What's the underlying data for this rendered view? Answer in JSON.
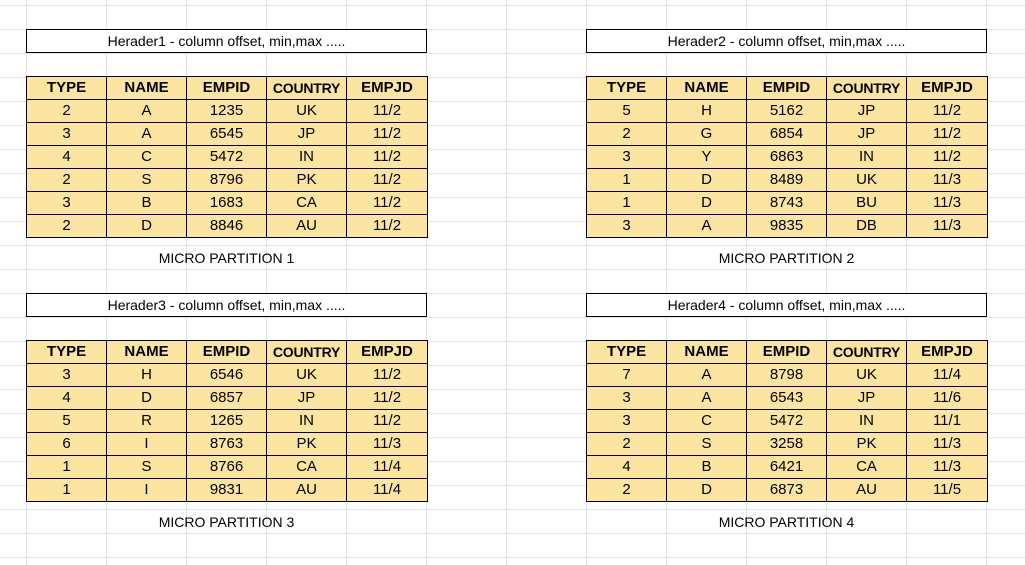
{
  "columns": [
    "TYPE",
    "NAME",
    "EMPID",
    "COUNTRY",
    "EMPJD"
  ],
  "partitions": [
    {
      "header": "Herader1 - column offset, min,max .....",
      "caption": "MICRO PARTITION 1",
      "rows": [
        [
          "2",
          "A",
          "1235",
          "UK",
          "11/2"
        ],
        [
          "3",
          "A",
          "6545",
          "JP",
          "11/2"
        ],
        [
          "4",
          "C",
          "5472",
          "IN",
          "11/2"
        ],
        [
          "2",
          "S",
          "8796",
          "PK",
          "11/2"
        ],
        [
          "3",
          "B",
          "1683",
          "CA",
          "11/2"
        ],
        [
          "2",
          "D",
          "8846",
          "AU",
          "11/2"
        ]
      ]
    },
    {
      "header": "Herader2 - column offset, min,max .....",
      "caption": "MICRO PARTITION 2",
      "rows": [
        [
          "5",
          "H",
          "5162",
          "JP",
          "11/2"
        ],
        [
          "2",
          "G",
          "6854",
          "JP",
          "11/2"
        ],
        [
          "3",
          "Y",
          "6863",
          "IN",
          "11/2"
        ],
        [
          "1",
          "D",
          "8489",
          "UK",
          "11/3"
        ],
        [
          "1",
          "D",
          "8743",
          "BU",
          "11/3"
        ],
        [
          "3",
          "A",
          "9835",
          "DB",
          "11/3"
        ]
      ]
    },
    {
      "header": "Herader3 - column offset, min,max .....",
      "caption": "MICRO PARTITION 3",
      "rows": [
        [
          "3",
          "H",
          "6546",
          "UK",
          "11/2"
        ],
        [
          "4",
          "D",
          "6857",
          "JP",
          "11/2"
        ],
        [
          "5",
          "R",
          "1265",
          "IN",
          "11/2"
        ],
        [
          "6",
          "I",
          "8763",
          "PK",
          "11/3"
        ],
        [
          "1",
          "S",
          "8766",
          "CA",
          "11/4"
        ],
        [
          "1",
          "I",
          "9831",
          "AU",
          "11/4"
        ]
      ]
    },
    {
      "header": "Herader4 - column offset, min,max .....",
      "caption": "MICRO PARTITION 4",
      "rows": [
        [
          "7",
          "A",
          "8798",
          "UK",
          "11/4"
        ],
        [
          "3",
          "A",
          "6543",
          "JP",
          "11/6"
        ],
        [
          "3",
          "C",
          "5472",
          "IN",
          "11/1"
        ],
        [
          "2",
          "S",
          "3258",
          "PK",
          "11/3"
        ],
        [
          "4",
          "B",
          "6421",
          "CA",
          "11/3"
        ],
        [
          "2",
          "D",
          "6873",
          "AU",
          "11/5"
        ]
      ]
    }
  ],
  "colors": {
    "table_fill": "#fbe5a1",
    "grid_line": "#e3e3e3",
    "border": "#000000"
  }
}
